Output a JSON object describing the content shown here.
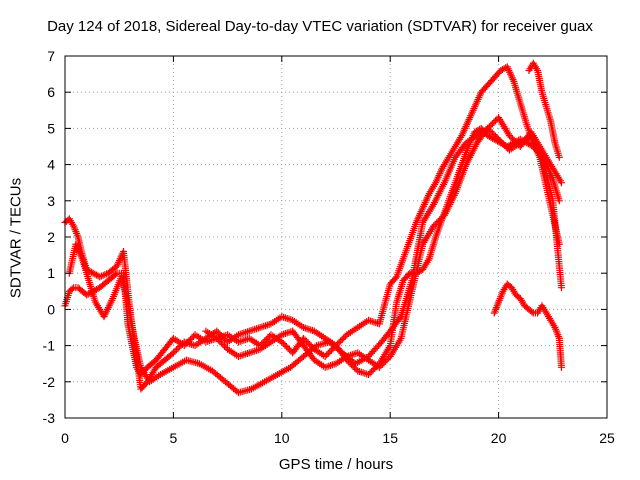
{
  "chart_data": {
    "type": "scatter",
    "title": "Day 124 of 2018, Sidereal Day-to-day VTEC variation (SDTVAR) for receiver guax",
    "xlabel": "GPS time / hours",
    "ylabel": "SDTVAR / TECUs",
    "xlim": [
      0,
      25
    ],
    "ylim": [
      -3,
      7
    ],
    "xticks": [
      "0",
      "5",
      "10",
      "15",
      "20",
      "25"
    ],
    "yticks": [
      "-3",
      "-2",
      "-1",
      "0",
      "1",
      "2",
      "3",
      "4",
      "5",
      "6",
      "7"
    ],
    "grid": true,
    "marker": "+",
    "color": "#ff0000",
    "series": [
      {
        "x": [
          0,
          0.2,
          0.4,
          0.6,
          0.8,
          1.0,
          1.3,
          1.6,
          2.0,
          2.4,
          2.7,
          2.9,
          3.1,
          3.3,
          3.5,
          3.8,
          4.2,
          4.6,
          5.0,
          5.5,
          6.0,
          6.5,
          7.0,
          7.5,
          8.0,
          8.5,
          9.0,
          9.5,
          10.0,
          10.5,
          11.0,
          11.5,
          12.0,
          12.5,
          13.0,
          13.5,
          14.0,
          14.5,
          15.0,
          15.3,
          15.6,
          15.9,
          16.2,
          16.5,
          16.8,
          17.1,
          17.4,
          17.7,
          18.0,
          18.3,
          18.6,
          18.9,
          19.2,
          19.5,
          19.8,
          20.1,
          20.4,
          20.7,
          21.0,
          21.3,
          21.6,
          21.9,
          22.2,
          22.5,
          22.8
        ],
        "y": [
          0.1,
          0.5,
          0.6,
          0.6,
          0.5,
          0.4,
          0.5,
          0.6,
          0.8,
          1.0,
          1.0,
          -0.4,
          -1.0,
          -1.6,
          -1.8,
          -1.6,
          -1.4,
          -1.1,
          -0.8,
          -1.0,
          -0.7,
          -0.9,
          -0.8,
          -0.7,
          -0.9,
          -0.8,
          -1.0,
          -0.7,
          -0.9,
          -1.2,
          -0.8,
          -1.1,
          -1.3,
          -1.0,
          -1.4,
          -1.7,
          -1.8,
          -1.5,
          -1.0,
          0.2,
          0.8,
          1.0,
          1.0,
          1.1,
          1.4,
          2.0,
          2.5,
          3.0,
          3.5,
          4.0,
          4.5,
          4.9,
          5.0,
          4.8,
          4.7,
          4.6,
          4.5,
          4.6,
          4.7,
          4.6,
          4.5,
          4.3,
          4.0,
          3.6,
          3.0
        ]
      },
      {
        "x": [
          0,
          0.2,
          0.4,
          0.6,
          0.8,
          1.0,
          1.3,
          1.6,
          2.0,
          2.4,
          2.7,
          2.9,
          3.1,
          3.3,
          3.5,
          3.8,
          4.2,
          4.6,
          5.0,
          5.5,
          6.0,
          6.5,
          7.0,
          7.5,
          8.0,
          8.5,
          9.0,
          9.5,
          10.0,
          10.5,
          11.0,
          11.5,
          12.0,
          12.5,
          13.0,
          13.5,
          14.0,
          14.5,
          15.0,
          15.3,
          15.6,
          15.9,
          16.2,
          16.5,
          16.8,
          17.1,
          17.4,
          17.7,
          18.0,
          18.3,
          18.6,
          18.9,
          19.2,
          19.5,
          19.8,
          20.1,
          20.4,
          20.7,
          21.0,
          21.3,
          21.6,
          21.9,
          22.2,
          22.5,
          22.8
        ],
        "y": [
          2.4,
          2.5,
          2.3,
          2.0,
          1.5,
          1.1,
          1.0,
          0.9,
          1.0,
          1.2,
          1.6,
          0.5,
          -0.5,
          -1.3,
          -2.2,
          -2.0,
          -1.6,
          -1.4,
          -1.2,
          -0.9,
          -1.0,
          -0.8,
          -0.6,
          -0.9,
          -0.7,
          -0.6,
          -0.5,
          -0.4,
          -0.2,
          -0.3,
          -0.5,
          -0.6,
          -0.8,
          -1.0,
          -0.7,
          -0.5,
          -0.3,
          -0.4,
          0.7,
          0.9,
          1.4,
          1.9,
          2.4,
          2.8,
          3.2,
          3.5,
          3.9,
          4.2,
          4.5,
          4.8,
          5.2,
          5.6,
          6.0,
          6.2,
          6.4,
          6.6,
          6.7,
          6.3,
          5.7,
          5.1,
          4.6,
          4.2,
          3.4,
          2.6,
          1.8
        ]
      },
      {
        "x": [
          0.2,
          0.5,
          0.8,
          1.1,
          1.4,
          1.8,
          2.2,
          2.6,
          2.9,
          3.2,
          3.5,
          3.9,
          4.4,
          5.0,
          5.6,
          6.2,
          6.8,
          7.4,
          8.0,
          8.6,
          9.2,
          9.8,
          10.4,
          11.0,
          11.6,
          12.2,
          12.8,
          13.4,
          14.0,
          14.6,
          15.0,
          15.5,
          16.0,
          16.5,
          17.0,
          17.5,
          18.0,
          18.5,
          19.0,
          19.5,
          20.0,
          20.5,
          21.0,
          21.5,
          22.0,
          22.5,
          22.9
        ],
        "y": [
          1.0,
          1.8,
          1.4,
          0.8,
          0.2,
          -0.2,
          0.3,
          0.9,
          0.2,
          -0.8,
          -1.6,
          -2.0,
          -1.8,
          -1.6,
          -1.4,
          -1.5,
          -1.7,
          -2.0,
          -2.3,
          -2.2,
          -2.0,
          -1.8,
          -1.6,
          -1.3,
          -1.0,
          -0.9,
          -1.2,
          -1.5,
          -1.3,
          -0.9,
          -0.6,
          -0.2,
          0.8,
          2.4,
          2.9,
          3.5,
          4.2,
          4.6,
          4.8,
          5.0,
          5.3,
          4.8,
          4.5,
          4.9,
          4.4,
          3.9,
          3.5
        ]
      },
      {
        "x": [
          6.5,
          7.0,
          7.5,
          8.0,
          8.5,
          9.0,
          9.5,
          10.0,
          10.5,
          11.0,
          11.5,
          12.0,
          12.5,
          13.0,
          13.5,
          14.0,
          14.5,
          15.0,
          15.5,
          16.0,
          16.5,
          17.0,
          17.5,
          18.0,
          18.5,
          19.0,
          19.5,
          20.0,
          20.5,
          21.0,
          21.5,
          22.0,
          22.5,
          22.9
        ],
        "y": [
          -0.6,
          -0.8,
          -1.1,
          -1.3,
          -1.2,
          -1.1,
          -0.9,
          -0.7,
          -0.6,
          -1.0,
          -1.4,
          -1.6,
          -1.5,
          -1.3,
          -1.2,
          -1.4,
          -1.6,
          -1.3,
          -0.8,
          0.5,
          1.8,
          2.3,
          2.6,
          3.2,
          4.0,
          4.6,
          5.0,
          4.7,
          4.4,
          4.6,
          4.8,
          4.2,
          3.0,
          0.6
        ]
      },
      {
        "x": [
          19.8,
          20.0,
          20.2,
          20.4,
          20.6,
          20.8,
          21.0,
          21.2,
          21.4,
          21.6,
          21.8,
          22.0,
          22.2,
          22.4,
          22.6,
          22.8,
          22.9
        ],
        "y": [
          -0.1,
          0.2,
          0.5,
          0.7,
          0.6,
          0.4,
          0.3,
          0.1,
          0.0,
          -0.1,
          -0.1,
          0.1,
          -0.1,
          -0.3,
          -0.5,
          -0.8,
          -1.6
        ]
      },
      {
        "x": [
          21.4,
          21.6,
          21.8,
          22.0,
          22.2,
          22.4,
          22.6,
          22.8
        ],
        "y": [
          6.6,
          6.8,
          6.6,
          6.0,
          5.6,
          5.2,
          4.6,
          4.2
        ]
      }
    ]
  }
}
